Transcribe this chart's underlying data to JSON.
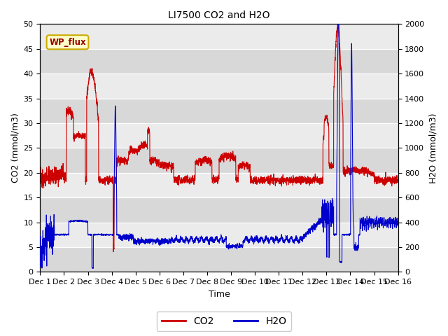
{
  "title": "LI7500 CO2 and H2O",
  "xlabel": "Time",
  "ylabel_left": "CO2 (mmol/m3)",
  "ylabel_right": "H2O (mmol/m3)",
  "co2_color": "#cc0000",
  "h2o_color": "#0000cc",
  "ylim_left": [
    0,
    50
  ],
  "ylim_right": [
    0,
    2000
  ],
  "yticks_left": [
    0,
    5,
    10,
    15,
    20,
    25,
    30,
    35,
    40,
    45,
    50
  ],
  "yticks_right": [
    0,
    200,
    400,
    600,
    800,
    1000,
    1200,
    1400,
    1600,
    1800,
    2000
  ],
  "xtick_labels": [
    "Dec 1",
    "Dec 2",
    "Dec 3",
    "Dec 4",
    "Dec 5",
    "Dec 6",
    "Dec 7",
    "Dec 8",
    "Dec 9",
    "Dec 10",
    "Dec 11",
    "Dec 12",
    "Dec 13",
    "Dec 14",
    "Dec 15",
    "Dec 16"
  ],
  "wp_flux_label": "WP_flux",
  "wp_flux_bg": "#ffffcc",
  "wp_flux_border": "#ccaa00",
  "background_color": "#ffffff",
  "plot_bg_light": "#ebebeb",
  "plot_bg_dark": "#d8d8d8",
  "legend_co2": "CO2",
  "legend_h2o": "H2O",
  "line_width": 0.8,
  "n_points": 3000
}
